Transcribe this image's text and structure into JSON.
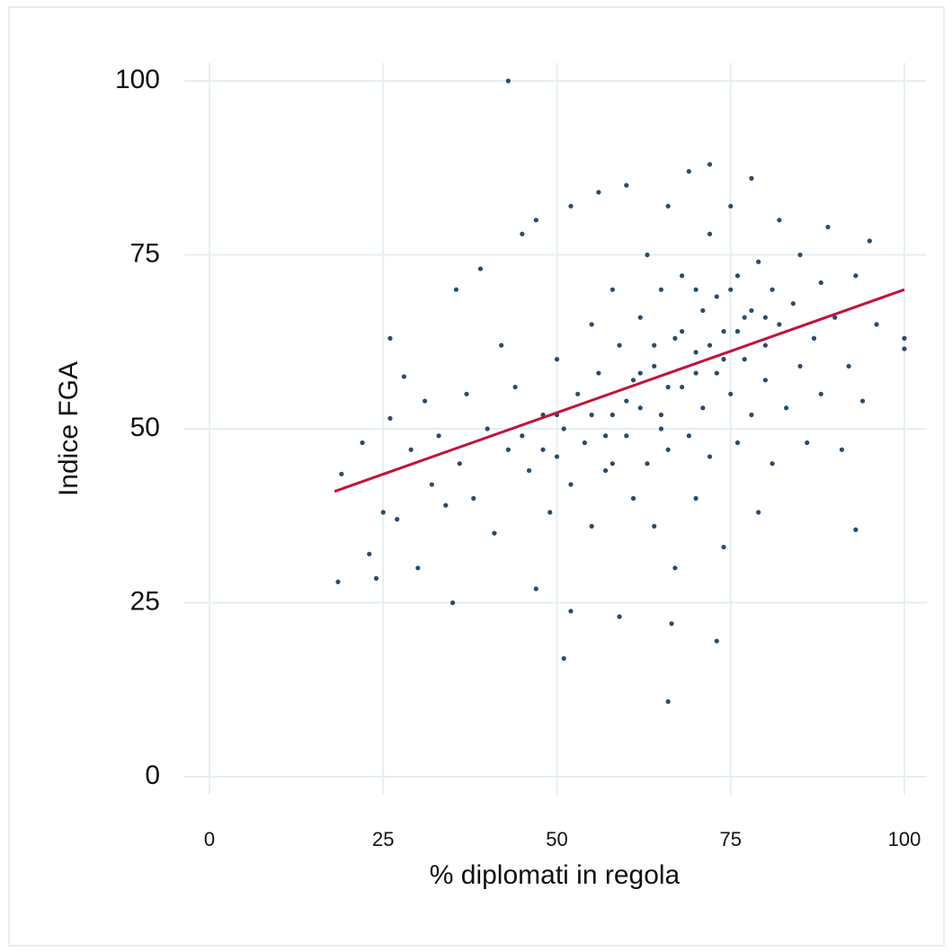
{
  "chart_data": {
    "type": "scatter",
    "x_label": "% diplomati in regola",
    "y_label": "Indice FGA",
    "xlim": [
      0,
      100
    ],
    "ylim": [
      0,
      100
    ],
    "xticks": [
      0,
      25,
      50,
      75,
      100
    ],
    "yticks": [
      0,
      25,
      50,
      75,
      100
    ],
    "grid": true,
    "series": [
      {
        "color": "#2c4a6b",
        "x": [
          43,
          66,
          51,
          73,
          18.5,
          100,
          100,
          93,
          59,
          66.5,
          52,
          19,
          22,
          23,
          24,
          25,
          26,
          26,
          27,
          28,
          29,
          30,
          31,
          32,
          33,
          34,
          35,
          35.5,
          36,
          37,
          38,
          39,
          40,
          41,
          42,
          43,
          44,
          45,
          46,
          47,
          47,
          48,
          49,
          50,
          50,
          51,
          52,
          52,
          53,
          54,
          55,
          55,
          56,
          56,
          57,
          58,
          58,
          59,
          60,
          60,
          61,
          61,
          62,
          62,
          63,
          63,
          64,
          64,
          65,
          65,
          66,
          66,
          67,
          67,
          68,
          68,
          69,
          69,
          70,
          70,
          71,
          71,
          72,
          72,
          72,
          73,
          73,
          74,
          74,
          75,
          75,
          76,
          76,
          77,
          77,
          78,
          78,
          79,
          79,
          80,
          80,
          81,
          81,
          82,
          82,
          83,
          84,
          85,
          85,
          86,
          87,
          88,
          88,
          89,
          90,
          91,
          92,
          93,
          94,
          95,
          96,
          55,
          57,
          60,
          62,
          64,
          66,
          68,
          70,
          72,
          74,
          76,
          78,
          50,
          48,
          45,
          58,
          65,
          70,
          75,
          80
        ],
        "values": [
          100,
          10.8,
          17,
          19.5,
          28,
          63,
          61.5,
          35.5,
          23,
          22,
          23.8,
          43.5,
          48,
          32,
          28.5,
          38,
          63,
          51.5,
          37,
          57.5,
          47,
          30,
          54,
          42,
          49,
          39,
          25,
          70,
          45,
          55,
          40,
          73,
          50,
          35,
          62,
          47,
          56,
          78,
          44,
          80,
          27,
          52,
          38,
          60,
          46,
          50,
          82,
          42,
          55,
          48,
          65,
          36,
          58,
          84,
          44,
          52,
          70,
          62,
          49,
          85,
          57,
          40,
          66,
          53,
          45,
          75,
          59,
          36,
          52,
          70,
          82,
          47,
          63,
          30,
          56,
          72,
          49,
          87,
          61,
          40,
          67,
          53,
          78,
          88,
          46,
          58,
          69,
          33,
          64,
          55,
          82,
          72,
          48,
          60,
          66,
          86,
          52,
          74,
          38,
          62,
          57,
          70,
          45,
          80,
          65,
          53,
          68,
          59,
          75,
          48,
          63,
          71,
          55,
          79,
          66,
          47,
          59,
          72,
          54,
          77,
          65,
          52,
          49,
          54,
          58,
          62,
          56,
          64,
          58,
          62,
          60,
          64,
          67,
          52,
          47,
          49,
          45,
          50,
          70,
          70,
          66
        ]
      }
    ],
    "trend_line": {
      "color": "#c0143c",
      "x": [
        18,
        100
      ],
      "values": [
        41,
        70
      ]
    }
  }
}
